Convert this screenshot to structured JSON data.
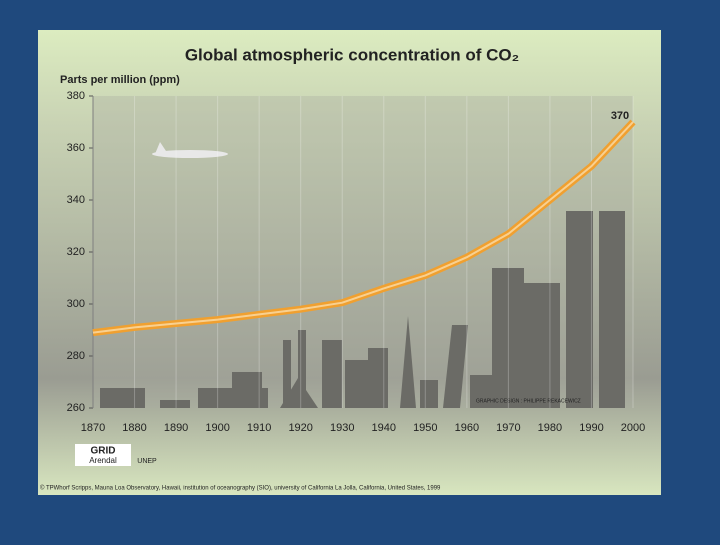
{
  "chart_data": {
    "type": "line",
    "title": "Global atmospheric concentration of CO₂",
    "y_label": "Parts per million (ppm)",
    "annotation": "370",
    "x": [
      1870,
      1880,
      1890,
      1900,
      1910,
      1920,
      1930,
      1940,
      1950,
      1960,
      1970,
      1980,
      1990,
      2000
    ],
    "series": [
      {
        "name": "CO₂",
        "color": "#f0a030",
        "values": [
          289,
          291,
          292.5,
          294,
          296,
          298,
          300.5,
          306,
          311,
          318,
          327,
          340,
          353,
          370
        ]
      }
    ],
    "xlim": [
      1870,
      2000
    ],
    "xticks": [
      1870,
      1880,
      1890,
      1900,
      1910,
      1920,
      1930,
      1940,
      1950,
      1960,
      1970,
      1980,
      1990,
      2000
    ],
    "ylim": [
      260,
      380
    ],
    "yticks": [
      260,
      280,
      300,
      320,
      340,
      360,
      380
    ],
    "grid": true,
    "credit": "GRAPHIC DESIGN : PHILIPPE REKACEWICZ",
    "logo_grid": "GRID",
    "logo_arendal": "Arendal",
    "logo_unep": "UNEP",
    "source": "© TPWhorf Scripps, Mauna Loa Observatory, Hawaii, institution of oceanography (SIO), university of California La Jolla, California, United States, 1999"
  }
}
